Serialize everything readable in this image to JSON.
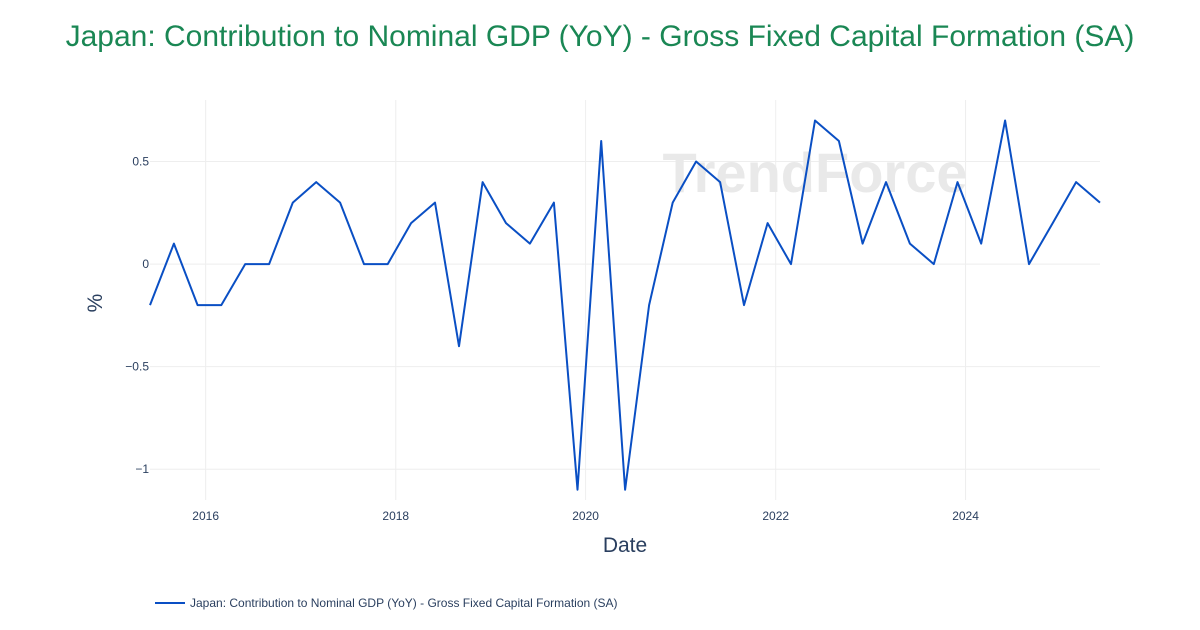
{
  "chart_data": {
    "type": "line",
    "title": "Japan: Contribution to Nominal GDP (YoY) - Gross Fixed Capital Formation (SA)",
    "xlabel": "Date",
    "ylabel": "%",
    "watermark": "TrendForce",
    "colors": {
      "title": "#1a8754",
      "line": "#0a4fc4",
      "grid": "#eeeeee"
    },
    "x_ticks": [
      "2016",
      "2018",
      "2020",
      "2022",
      "2024"
    ],
    "y_ticks": [
      {
        "value": 0.5,
        "label": "0.5"
      },
      {
        "value": 0,
        "label": "0"
      },
      {
        "value": -0.5,
        "label": "−0.5"
      },
      {
        "value": -1,
        "label": "−1"
      }
    ],
    "xlim": [
      "2015-06-01",
      "2025-06-01"
    ],
    "ylim": [
      -1.15,
      0.8
    ],
    "grid": true,
    "legend_position": "bottom-left",
    "series": [
      {
        "name": "Japan: Contribution to Nominal GDP (YoY) - Gross Fixed Capital Formation (SA)",
        "x": [
          "2015-06-01",
          "2015-09-01",
          "2015-12-01",
          "2016-03-01",
          "2016-06-01",
          "2016-09-01",
          "2016-12-01",
          "2017-03-01",
          "2017-06-01",
          "2017-09-01",
          "2017-12-01",
          "2018-03-01",
          "2018-06-01",
          "2018-09-01",
          "2018-12-01",
          "2019-03-01",
          "2019-06-01",
          "2019-09-01",
          "2019-12-01",
          "2020-03-01",
          "2020-06-01",
          "2020-09-01",
          "2020-12-01",
          "2021-03-01",
          "2021-06-01",
          "2021-09-01",
          "2021-12-01",
          "2022-03-01",
          "2022-06-01",
          "2022-09-01",
          "2022-12-01",
          "2023-03-01",
          "2023-06-01",
          "2023-09-01",
          "2023-12-01",
          "2024-03-01",
          "2024-06-01",
          "2024-09-01",
          "2024-12-01",
          "2025-03-01",
          "2025-06-01"
        ],
        "values": [
          -0.2,
          0.1,
          -0.2,
          -0.2,
          0,
          0,
          0.3,
          0.4,
          0.3,
          0,
          0,
          0.2,
          0.3,
          -0.4,
          0.4,
          0.2,
          0.1,
          0.3,
          -1.1,
          0.6,
          -1.1,
          -0.2,
          0.3,
          0.5,
          0.4,
          -0.2,
          0.2,
          0,
          0.7,
          0.6,
          0.1,
          0.4,
          0.1,
          0,
          0.4,
          0.1,
          0.7,
          0,
          0.2,
          0.4,
          0.3
        ]
      }
    ]
  }
}
